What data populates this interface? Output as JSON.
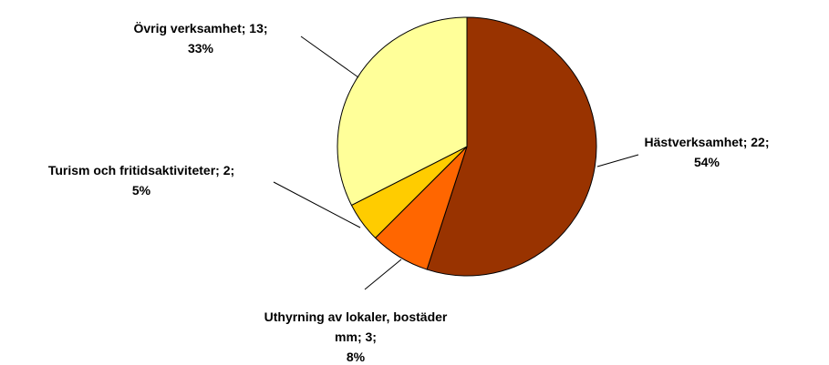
{
  "chart_data": {
    "type": "pie",
    "categories": [
      "Hästverksamhet;",
      "Uthyrning av lokaler, bostäder mm;",
      "Turism och fritidsaktiviteter;",
      "Övrig verksamhet;"
    ],
    "values": [
      22,
      3,
      2,
      13
    ],
    "value_labels": [
      "22;",
      "3;",
      "2;",
      "13;"
    ],
    "percentages": [
      54,
      8,
      5,
      33
    ],
    "percentage_labels": [
      "54%",
      "8%",
      "5%",
      "33%"
    ],
    "colors": [
      "#993300",
      "#ff6600",
      "#ffcc00",
      "#ffff99"
    ]
  }
}
